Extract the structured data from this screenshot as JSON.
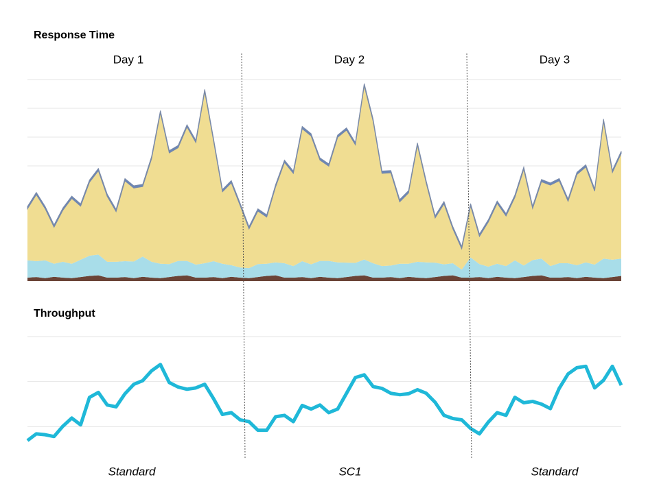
{
  "chart_data": [
    {
      "type": "area",
      "stacked": true,
      "title": "Response Time",
      "annotations": [
        "Day 1",
        "Day 2",
        "Day 3"
      ],
      "ylim": [
        0,
        7
      ],
      "yticks": [
        4,
        5,
        6,
        7
      ],
      "grid": true,
      "series": [
        {
          "color": "#6b4437",
          "values": [
            0.12,
            0.14,
            0.1,
            0.15,
            0.12,
            0.1,
            0.14,
            0.18,
            0.2,
            0.12,
            0.12,
            0.14,
            0.1,
            0.15,
            0.12,
            0.1,
            0.14,
            0.18,
            0.2,
            0.12,
            0.12,
            0.14,
            0.1,
            0.15,
            0.12,
            0.1,
            0.14,
            0.18,
            0.2,
            0.12,
            0.12,
            0.14,
            0.1,
            0.15,
            0.12,
            0.1,
            0.14,
            0.18,
            0.2,
            0.12,
            0.12,
            0.14,
            0.1,
            0.15,
            0.12,
            0.1,
            0.14,
            0.18,
            0.2,
            0.12,
            0.12,
            0.14,
            0.1,
            0.15,
            0.12,
            0.1,
            0.14,
            0.18,
            0.2,
            0.12,
            0.12,
            0.14,
            0.1,
            0.15,
            0.12,
            0.1,
            0.14,
            0.18
          ]
        },
        {
          "color": "#a8dde9",
          "values": [
            0.6,
            0.55,
            0.62,
            0.45,
            0.55,
            0.5,
            0.6,
            0.7,
            0.72,
            0.55,
            0.55,
            0.55,
            0.58,
            0.7,
            0.55,
            0.5,
            0.45,
            0.52,
            0.5,
            0.45,
            0.5,
            0.55,
            0.5,
            0.4,
            0.35,
            0.35,
            0.45,
            0.42,
            0.45,
            0.5,
            0.4,
            0.55,
            0.48,
            0.55,
            0.58,
            0.55,
            0.5,
            0.45,
            0.55,
            0.5,
            0.4,
            0.4,
            0.5,
            0.45,
            0.55,
            0.55,
            0.5,
            0.4,
            0.42,
            0.28,
            0.7,
            0.45,
            0.4,
            0.45,
            0.4,
            0.62,
            0.4,
            0.55,
            0.58,
            0.4,
            0.5,
            0.48,
            0.45,
            0.5,
            0.45,
            0.68,
            0.6,
            0.6
          ]
        },
        {
          "color": "#f0dd92",
          "values": [
            1.79,
            2.31,
            1.79,
            1.27,
            1.79,
            2.27,
            1.86,
            2.55,
            2.91,
            2.27,
            1.74,
            2.79,
            2.55,
            2.43,
            3.57,
            5.24,
            3.86,
            3.93,
            4.65,
            4.24,
            5.96,
            4.17,
            2.5,
            2.86,
            2.15,
            1.36,
            1.84,
            1.62,
            2.62,
            3.5,
            3.22,
            4.6,
            4.46,
            3.5,
            3.29,
            4.34,
            4.6,
            4.1,
            6.03,
            4.93,
            3.22,
            3.22,
            2.15,
            2.46,
            4.05,
            2.74,
            1.55,
            2.1,
            1.19,
            0.72,
            1.79,
            0.96,
            1.55,
            2.1,
            1.74,
            2.19,
            3.34,
            1.79,
            2.67,
            2.81,
            2.86,
            2.15,
            3.15,
            3.31,
            2.55,
            4.77,
            3.03,
            3.65
          ]
        },
        {
          "color": "#6a86b8",
          "values": [
            0.08,
            0.08,
            0.08,
            0.08,
            0.08,
            0.08,
            0.08,
            0.08,
            0.08,
            0.08,
            0.08,
            0.08,
            0.08,
            0.08,
            0.08,
            0.08,
            0.08,
            0.08,
            0.08,
            0.08,
            0.08,
            0.08,
            0.08,
            0.08,
            0.08,
            0.08,
            0.08,
            0.08,
            0.08,
            0.08,
            0.08,
            0.08,
            0.08,
            0.08,
            0.08,
            0.08,
            0.08,
            0.08,
            0.08,
            0.08,
            0.08,
            0.08,
            0.08,
            0.08,
            0.08,
            0.08,
            0.08,
            0.08,
            0.08,
            0.08,
            0.08,
            0.08,
            0.08,
            0.08,
            0.08,
            0.08,
            0.08,
            0.08,
            0.08,
            0.08,
            0.08,
            0.08,
            0.08,
            0.08,
            0.08,
            0.08,
            0.08,
            0.08
          ]
        }
      ]
    },
    {
      "type": "line",
      "title": "Throughput",
      "annotations": [
        "Standard",
        "SC1",
        "Standard"
      ],
      "ylim": [
        0,
        3
      ],
      "yticks": [
        1,
        2,
        3
      ],
      "grid": true,
      "series": [
        {
          "color": "#1fb8d8",
          "values": [
            0.69,
            0.84,
            0.82,
            0.78,
            1.01,
            1.19,
            1.04,
            1.65,
            1.76,
            1.48,
            1.44,
            1.73,
            1.94,
            2.02,
            2.24,
            2.38,
            1.98,
            1.88,
            1.83,
            1.86,
            1.94,
            1.62,
            1.27,
            1.31,
            1.15,
            1.11,
            0.92,
            0.92,
            1.22,
            1.25,
            1.11,
            1.47,
            1.39,
            1.48,
            1.31,
            1.39,
            1.74,
            2.09,
            2.15,
            1.89,
            1.85,
            1.74,
            1.71,
            1.73,
            1.82,
            1.74,
            1.54,
            1.25,
            1.18,
            1.15,
            0.96,
            0.84,
            1.1,
            1.31,
            1.25,
            1.65,
            1.53,
            1.56,
            1.5,
            1.4,
            1.85,
            2.17,
            2.31,
            2.34,
            1.86,
            2.03,
            2.34,
            1.92
          ]
        }
      ]
    }
  ]
}
